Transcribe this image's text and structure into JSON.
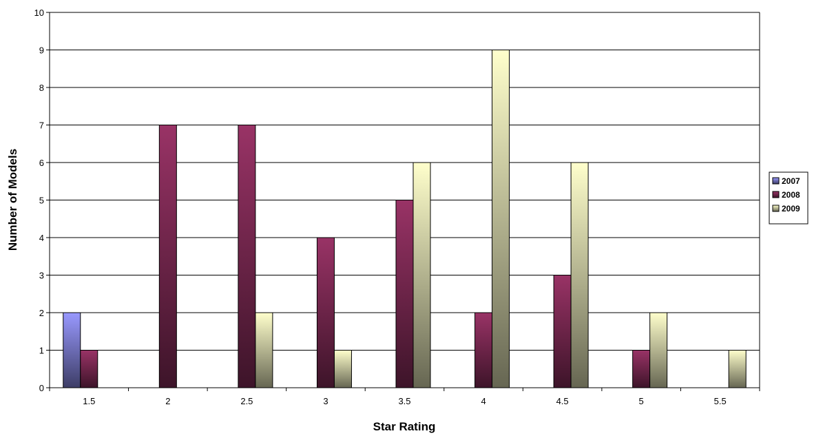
{
  "chart_data": {
    "type": "bar",
    "title": "",
    "xlabel": "Star Rating",
    "ylabel": "Number of Models",
    "categories": [
      "1.5",
      "2",
      "2.5",
      "3",
      "3.5",
      "4",
      "4.5",
      "5",
      "5.5"
    ],
    "series": [
      {
        "name": "2007",
        "values": [
          2,
          null,
          null,
          null,
          null,
          null,
          null,
          null,
          null
        ]
      },
      {
        "name": "2008",
        "values": [
          1,
          7,
          7,
          4,
          5,
          2,
          3,
          1,
          null
        ]
      },
      {
        "name": "2009",
        "values": [
          null,
          null,
          2,
          1,
          6,
          9,
          6,
          2,
          1
        ]
      }
    ],
    "ylim": [
      0,
      10
    ],
    "yticks": [
      "0",
      "1",
      "2",
      "3",
      "4",
      "5",
      "6",
      "7",
      "8",
      "9",
      "10"
    ],
    "grid": true,
    "legend_position": "right",
    "colors": {
      "2007": {
        "light": "#9999ff",
        "dark": "#3d3d66"
      },
      "2008": {
        "light": "#993366",
        "dark": "#3d1429"
      },
      "2009": {
        "light": "#ffffcc",
        "dark": "#666652"
      }
    }
  }
}
